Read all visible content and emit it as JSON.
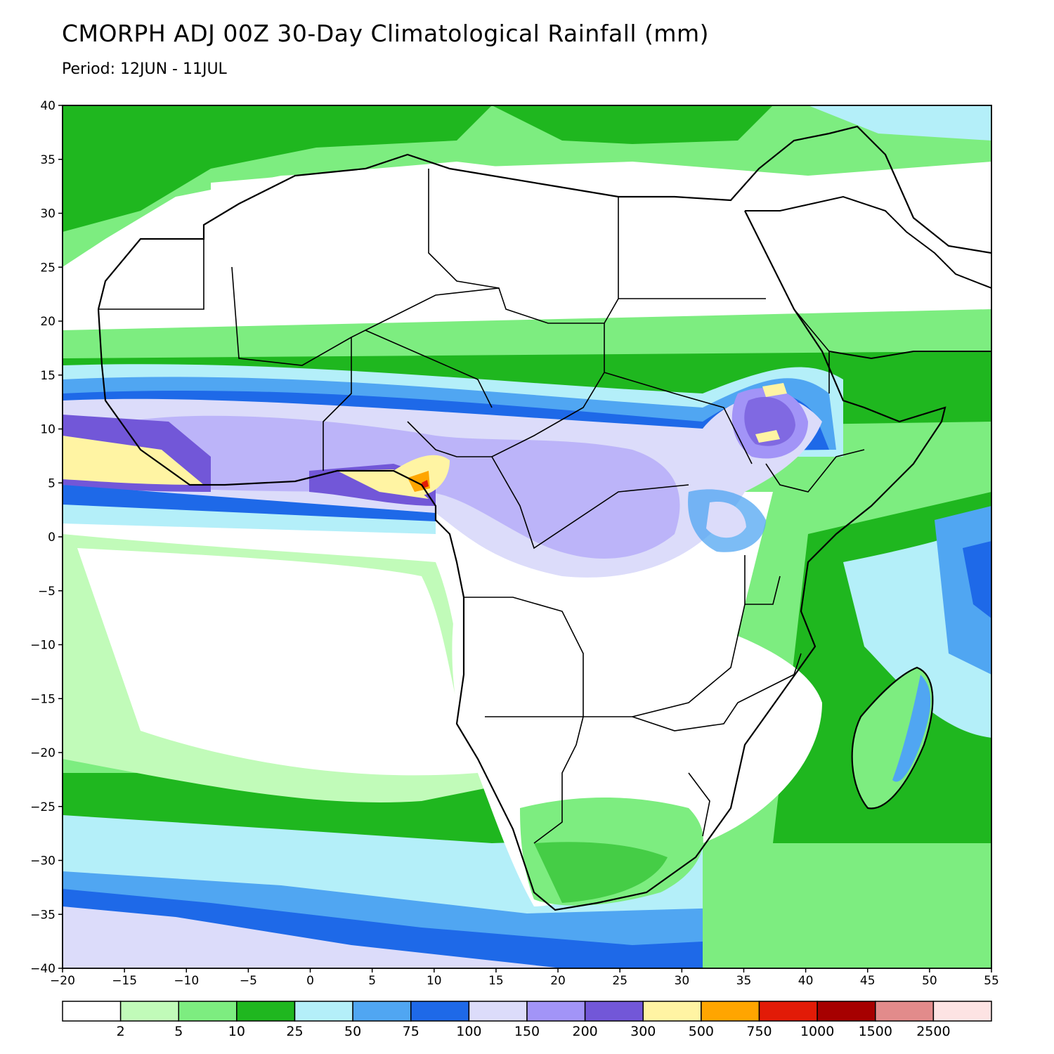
{
  "title": "CMORPH ADJ 00Z 30-Day Climatological Rainfall (mm)",
  "subtitle": "Period: 12JUN - 11JUL",
  "map": {
    "lon_range": [
      -20,
      55
    ],
    "lat_range": [
      -40,
      40
    ],
    "x_ticks": [
      "−20",
      "−15",
      "−10",
      "−5",
      "0",
      "5",
      "10",
      "15",
      "20",
      "25",
      "30",
      "35",
      "40",
      "45",
      "50",
      "55"
    ],
    "y_ticks": [
      "40",
      "35",
      "30",
      "25",
      "20",
      "15",
      "10",
      "5",
      "0",
      "−5",
      "−10",
      "−15",
      "−20",
      "−25",
      "−30",
      "−35",
      "−40"
    ],
    "x_tick_values": [
      -20,
      -15,
      -10,
      -5,
      0,
      5,
      10,
      15,
      20,
      25,
      30,
      35,
      40,
      45,
      50,
      55
    ],
    "y_tick_values": [
      40,
      35,
      30,
      25,
      20,
      15,
      10,
      5,
      0,
      -5,
      -10,
      -15,
      -20,
      -25,
      -30,
      -35,
      -40
    ]
  },
  "legend": {
    "colors": [
      "#ffffff",
      "#c1fbb9",
      "#7ded80",
      "#1fb71f",
      "#b4eff9",
      "#50a6f2",
      "#1e69e8",
      "#dcdcfa",
      "#a294f7",
      "#7257d8",
      "#fff4a3",
      "#ffa500",
      "#e21b07",
      "#a60000",
      "#e28b8b",
      "#fde3e3"
    ],
    "labels": [
      "2",
      "5",
      "10",
      "25",
      "50",
      "75",
      "100",
      "150",
      "200",
      "300",
      "500",
      "750",
      "1000",
      "1500",
      "2500"
    ]
  }
}
